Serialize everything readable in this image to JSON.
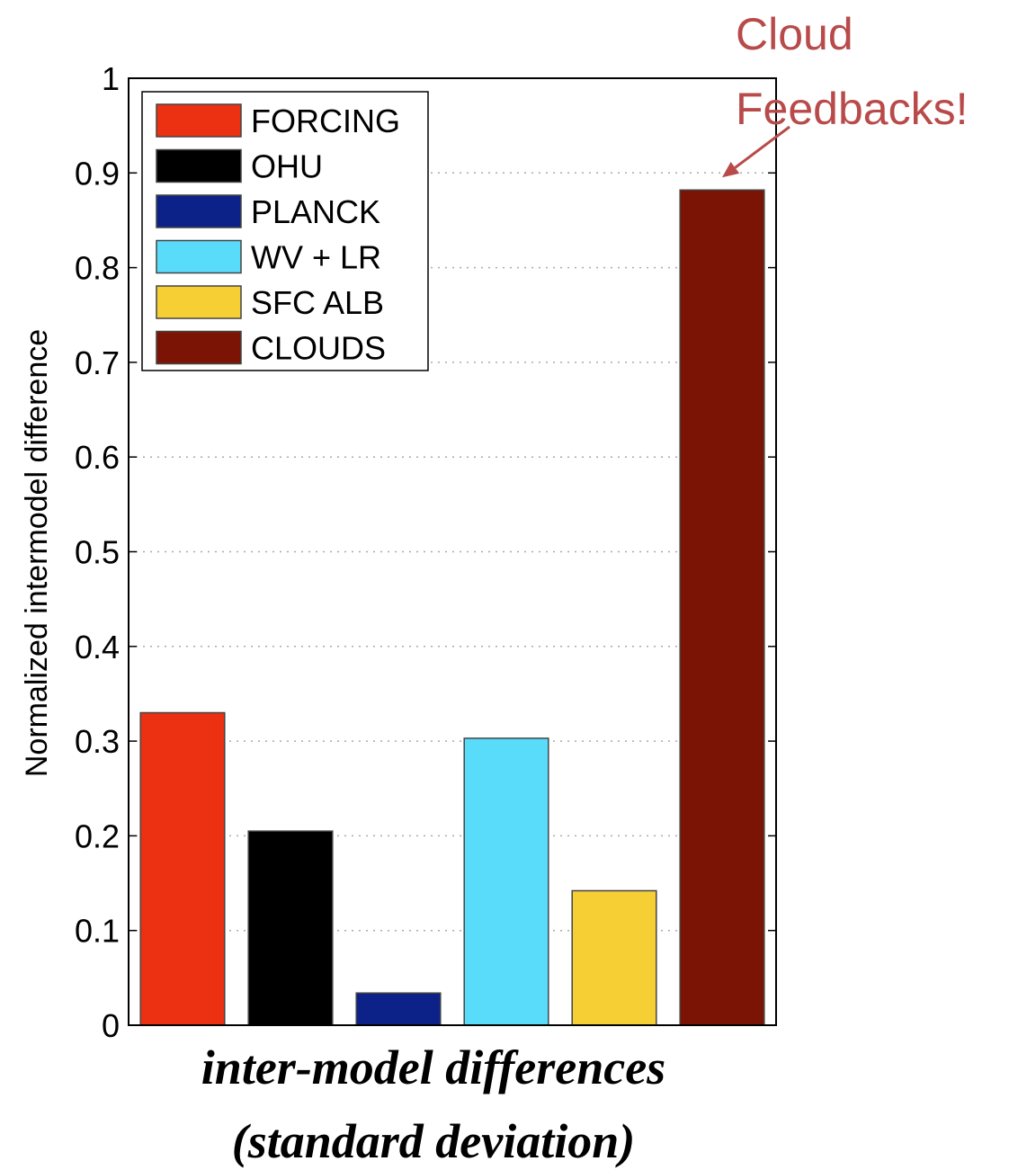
{
  "chart_data": {
    "type": "bar",
    "categories": [
      "FORCING",
      "OHU",
      "PLANCK",
      "WV + LR",
      "SFC ALB",
      "CLOUDS"
    ],
    "values": [
      0.33,
      0.205,
      0.034,
      0.303,
      0.142,
      0.882
    ],
    "colors": [
      "#ec3012",
      "#000000",
      "#0c2288",
      "#58dcfa",
      "#f6cf35",
      "#7b1405"
    ],
    "ylabel": "Normalized intermodel difference",
    "xlabel_lines": [
      "inter-model differences",
      "(standard deviation)"
    ],
    "ylim": [
      0,
      1
    ],
    "yticks": [
      "0",
      "0.1",
      "0.2",
      "0.3",
      "0.4",
      "0.5",
      "0.6",
      "0.7",
      "0.8",
      "0.9",
      "1"
    ],
    "grid": "y-dotted",
    "legend_position": "top-left",
    "annotation": {
      "lines": [
        "Cloud",
        "Feedbacks!"
      ],
      "target_category": "CLOUDS",
      "color": "#b84a4a"
    }
  }
}
